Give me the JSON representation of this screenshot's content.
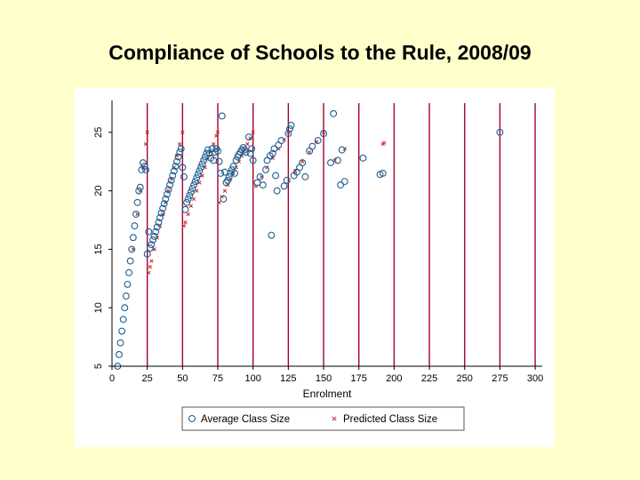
{
  "slide": {
    "title": "Compliance of Schools to the Rule, 2008/09"
  },
  "chart_data": {
    "type": "scatter",
    "title": "Compliance of Schools to the Rule, 2008/09",
    "xlabel": "Enrolment",
    "ylabel": "",
    "xlim": [
      0,
      305
    ],
    "ylim": [
      5,
      27.5
    ],
    "x_ticks": [
      "0",
      "25",
      "50",
      "75",
      "100",
      "125",
      "150",
      "175",
      "200",
      "225",
      "250",
      "275",
      "300"
    ],
    "y_ticks": [
      "5",
      "10",
      "15",
      "20",
      "25"
    ],
    "rule_lines": [
      25,
      50,
      75,
      100,
      125,
      150,
      175,
      200,
      225,
      250,
      275,
      300
    ],
    "colors": {
      "average": "#1f5f8f",
      "predicted": "#cc2222",
      "rule_line": "#a80030",
      "axis": "#000000"
    },
    "legend": {
      "position": "bottom",
      "items": [
        "Average Class Size",
        "Predicted Class Size"
      ]
    },
    "series": [
      {
        "name": "Average Class Size",
        "marker": "circle",
        "points": [
          [
            4,
            5
          ],
          [
            5,
            6
          ],
          [
            6,
            7
          ],
          [
            7,
            8
          ],
          [
            8,
            9
          ],
          [
            9,
            10
          ],
          [
            10,
            11
          ],
          [
            11,
            12
          ],
          [
            12,
            13
          ],
          [
            13,
            14
          ],
          [
            14,
            15
          ],
          [
            15,
            16
          ],
          [
            16,
            17
          ],
          [
            17,
            18
          ],
          [
            18,
            19
          ],
          [
            19,
            20
          ],
          [
            20,
            20.3
          ],
          [
            21,
            21.8
          ],
          [
            22,
            22.4
          ],
          [
            23,
            22.1
          ],
          [
            24,
            21.8
          ],
          [
            25,
            14.6
          ],
          [
            26,
            16.5
          ],
          [
            27,
            15.1
          ],
          [
            28,
            15.4
          ],
          [
            29,
            15.8
          ],
          [
            30,
            16.1
          ],
          [
            31,
            16.5
          ],
          [
            32,
            16.9
          ],
          [
            33,
            17.3
          ],
          [
            34,
            17.7
          ],
          [
            35,
            18.1
          ],
          [
            36,
            18.5
          ],
          [
            37,
            18.9
          ],
          [
            38,
            19.3
          ],
          [
            39,
            19.7
          ],
          [
            40,
            20.1
          ],
          [
            41,
            20.5
          ],
          [
            42,
            20.9
          ],
          [
            43,
            21.3
          ],
          [
            44,
            21.7
          ],
          [
            45,
            22.1
          ],
          [
            46,
            22.5
          ],
          [
            47,
            22.9
          ],
          [
            48,
            23.3
          ],
          [
            49,
            23.6
          ],
          [
            50,
            22.0
          ],
          [
            51,
            21.2
          ],
          [
            52,
            18.4
          ],
          [
            53,
            19.0
          ],
          [
            54,
            19.3
          ],
          [
            55,
            19.6
          ],
          [
            56,
            19.9
          ],
          [
            57,
            20.2
          ],
          [
            58,
            20.5
          ],
          [
            59,
            20.8
          ],
          [
            60,
            21.1
          ],
          [
            61,
            21.4
          ],
          [
            62,
            21.7
          ],
          [
            63,
            22.0
          ],
          [
            64,
            22.3
          ],
          [
            65,
            22.6
          ],
          [
            66,
            22.9
          ],
          [
            67,
            23.2
          ],
          [
            68,
            23.5
          ],
          [
            69,
            23.2
          ],
          [
            70,
            22.8
          ],
          [
            71,
            23.6
          ],
          [
            72,
            22.6
          ],
          [
            73,
            23.3
          ],
          [
            74,
            23.6
          ],
          [
            75,
            23.4
          ],
          [
            76,
            22.5
          ],
          [
            77,
            21.5
          ],
          [
            78,
            26.4
          ],
          [
            79,
            19.3
          ],
          [
            80,
            21.6
          ],
          [
            81,
            20.7
          ],
          [
            82,
            20.9
          ],
          [
            83,
            21.2
          ],
          [
            84,
            21.5
          ],
          [
            85,
            21.8
          ],
          [
            86,
            22.1
          ],
          [
            87,
            21.5
          ],
          [
            88,
            22.6
          ],
          [
            89,
            22.9
          ],
          [
            90,
            23.1
          ],
          [
            91,
            23.3
          ],
          [
            92,
            23.5
          ],
          [
            93,
            23.7
          ],
          [
            94,
            23.5
          ],
          [
            95,
            23.3
          ],
          [
            97,
            24.6
          ],
          [
            98,
            23.2
          ],
          [
            99,
            23.6
          ],
          [
            100,
            22.6
          ],
          [
            103,
            20.7
          ],
          [
            105,
            21.2
          ],
          [
            107,
            20.5
          ],
          [
            109,
            21.8
          ],
          [
            110,
            22.6
          ],
          [
            112,
            23.0
          ],
          [
            113,
            16.2
          ],
          [
            114,
            23.2
          ],
          [
            115,
            23.6
          ],
          [
            116,
            21.3
          ],
          [
            117,
            20.0
          ],
          [
            118,
            23.9
          ],
          [
            120,
            24.3
          ],
          [
            122,
            20.4
          ],
          [
            124,
            20.9
          ],
          [
            125,
            24.9
          ],
          [
            126,
            25.3
          ],
          [
            127,
            25.6
          ],
          [
            129,
            21.3
          ],
          [
            131,
            21.6
          ],
          [
            133,
            22.0
          ],
          [
            135,
            22.4
          ],
          [
            137,
            21.2
          ],
          [
            140,
            23.4
          ],
          [
            142,
            23.8
          ],
          [
            146,
            24.3
          ],
          [
            150,
            24.9
          ],
          [
            155,
            22.4
          ],
          [
            157,
            26.6
          ],
          [
            160,
            22.6
          ],
          [
            162,
            20.5
          ],
          [
            163,
            23.5
          ],
          [
            165,
            20.8
          ],
          [
            178,
            22.8
          ],
          [
            190,
            21.4
          ],
          [
            192,
            21.5
          ],
          [
            275,
            25.0
          ]
        ]
      },
      {
        "name": "Predicted Class Size",
        "marker": "x",
        "points": [
          [
            15,
            15.0
          ],
          [
            18,
            18.0
          ],
          [
            20,
            20.0
          ],
          [
            22,
            22.0
          ],
          [
            24,
            24.0
          ],
          [
            25,
            25.0
          ],
          [
            26,
            13.0
          ],
          [
            27,
            13.5
          ],
          [
            28,
            14.0
          ],
          [
            30,
            15.0
          ],
          [
            32,
            16.0
          ],
          [
            34,
            17.0
          ],
          [
            36,
            18.0
          ],
          [
            38,
            19.0
          ],
          [
            40,
            20.0
          ],
          [
            42,
            21.0
          ],
          [
            44,
            22.0
          ],
          [
            46,
            23.0
          ],
          [
            48,
            24.0
          ],
          [
            50,
            25.0
          ],
          [
            51,
            17.0
          ],
          [
            52,
            17.3
          ],
          [
            54,
            18.0
          ],
          [
            56,
            18.7
          ],
          [
            58,
            19.3
          ],
          [
            60,
            20.0
          ],
          [
            62,
            20.7
          ],
          [
            64,
            21.3
          ],
          [
            66,
            22.0
          ],
          [
            68,
            22.7
          ],
          [
            70,
            23.3
          ],
          [
            72,
            24.0
          ],
          [
            74,
            24.7
          ],
          [
            75,
            25.0
          ],
          [
            76,
            19.0
          ],
          [
            78,
            19.5
          ],
          [
            80,
            20.0
          ],
          [
            82,
            20.5
          ],
          [
            84,
            21.0
          ],
          [
            86,
            21.5
          ],
          [
            88,
            22.0
          ],
          [
            90,
            22.5
          ],
          [
            92,
            23.0
          ],
          [
            94,
            23.5
          ],
          [
            96,
            24.0
          ],
          [
            98,
            24.5
          ],
          [
            100,
            25.0
          ],
          [
            102,
            20.4
          ],
          [
            106,
            21.2
          ],
          [
            110,
            22.0
          ],
          [
            114,
            22.8
          ],
          [
            118,
            23.6
          ],
          [
            122,
            24.4
          ],
          [
            125,
            25.0
          ],
          [
            130,
            21.7
          ],
          [
            135,
            22.5
          ],
          [
            140,
            23.3
          ],
          [
            145,
            24.2
          ],
          [
            150,
            25.0
          ],
          [
            158,
            22.6
          ],
          [
            165,
            23.6
          ],
          [
            192,
            24.0
          ],
          [
            193,
            24.1
          ]
        ]
      }
    ]
  }
}
